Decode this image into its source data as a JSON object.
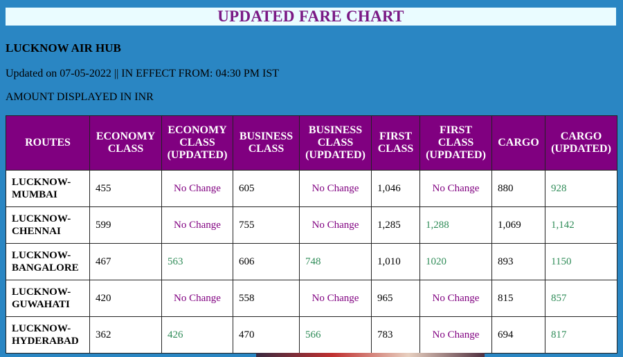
{
  "title": "UPDATED FARE CHART",
  "hub": "LUCKNOW AIR HUB",
  "updated": "Updated on 07-05-2022 || IN EFFECT FROM: 04:30 PM IST",
  "amount_note": "AMOUNT DISPLAYED IN INR",
  "columns": [
    "ROUTES",
    "ECONOMY CLASS",
    "ECONOMY CLASS (UPDATED)",
    "BUSINESS CLASS",
    "BUSINESS CLASS (UPDATED)",
    "FIRST CLASS",
    "FIRST CLASS (UPDATED)",
    "CARGO",
    "CARGO (UPDATED)"
  ],
  "rows": [
    [
      "LUCKNOW-MUMBAI",
      "455",
      "No Change",
      "605",
      "No Change",
      "1,046",
      "No Change",
      "880",
      "928"
    ],
    [
      "LUCKNOW-CHENNAI",
      "599",
      "No Change",
      "755",
      "No Change",
      "1,285",
      "1,288",
      "1,069",
      "1,142"
    ],
    [
      "LUCKNOW-BANGALORE",
      "467",
      "563",
      "606",
      "748",
      "1,010",
      "1020",
      "893",
      "1150"
    ],
    [
      "LUCKNOW-GUWAHATI",
      "420",
      "No Change",
      "558",
      "No Change",
      "965",
      "No Change",
      "815",
      "857"
    ],
    [
      "LUCKNOW-HYDERABAD",
      "362",
      "426",
      "470",
      "566",
      "783",
      "No Change",
      "694",
      "817"
    ]
  ],
  "colors": {
    "background": "#2a86c3",
    "header": "#800080",
    "no_change": "#800080",
    "updated_value": "#2e8b57",
    "title": "#7a1a85"
  }
}
